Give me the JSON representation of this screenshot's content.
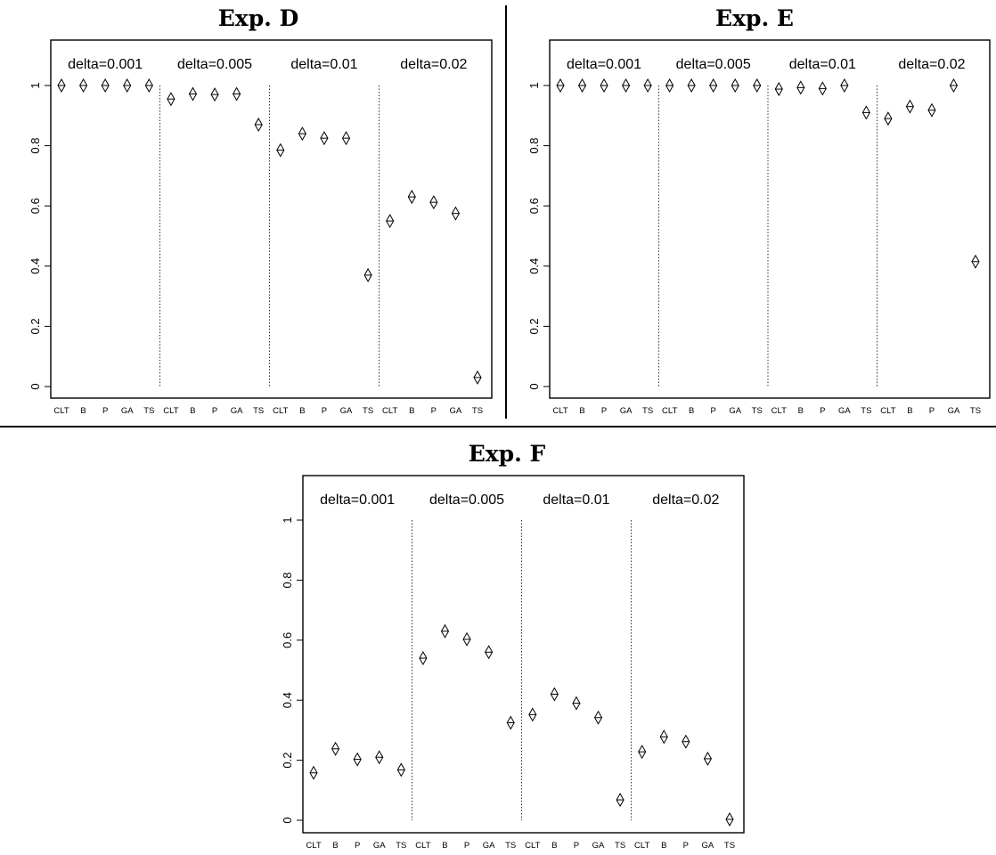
{
  "figure": {
    "x_categories": [
      "CLT",
      "B",
      "P",
      "GA",
      "TS"
    ],
    "group_labels": [
      "delta=0.001",
      "delta=0.005",
      "delta=0.01",
      "delta=0.02"
    ],
    "y_ticks": [
      "0",
      "0.2",
      "0.4",
      "0.6",
      "0.8",
      "1"
    ]
  },
  "chart_data": [
    {
      "type": "scatter",
      "title": "Exp. D",
      "xlabel": "",
      "ylabel": "",
      "ylim": [
        0,
        1
      ],
      "grid": false,
      "groups": [
        {
          "label": "delta=0.001",
          "categories": [
            "CLT",
            "B",
            "P",
            "GA",
            "TS"
          ],
          "values": [
            1.0,
            1.0,
            1.0,
            1.0,
            1.0
          ]
        },
        {
          "label": "delta=0.005",
          "categories": [
            "CLT",
            "B",
            "P",
            "GA",
            "TS"
          ],
          "values": [
            0.955,
            0.972,
            0.97,
            0.972,
            0.87
          ]
        },
        {
          "label": "delta=0.01",
          "categories": [
            "CLT",
            "B",
            "P",
            "GA",
            "TS"
          ],
          "values": [
            0.785,
            0.84,
            0.825,
            0.825,
            0.37
          ]
        },
        {
          "label": "delta=0.02",
          "categories": [
            "CLT",
            "B",
            "P",
            "GA",
            "TS"
          ],
          "values": [
            0.55,
            0.63,
            0.612,
            0.575,
            0.03
          ]
        }
      ]
    },
    {
      "type": "scatter",
      "title": "Exp. E",
      "xlabel": "",
      "ylabel": "",
      "ylim": [
        0,
        1
      ],
      "grid": false,
      "groups": [
        {
          "label": "delta=0.001",
          "categories": [
            "CLT",
            "B",
            "P",
            "GA",
            "TS"
          ],
          "values": [
            1.0,
            1.0,
            1.0,
            1.0,
            1.0
          ]
        },
        {
          "label": "delta=0.005",
          "categories": [
            "CLT",
            "B",
            "P",
            "GA",
            "TS"
          ],
          "values": [
            1.0,
            1.0,
            1.0,
            1.0,
            1.0
          ]
        },
        {
          "label": "delta=0.01",
          "categories": [
            "CLT",
            "B",
            "P",
            "GA",
            "TS"
          ],
          "values": [
            0.988,
            0.993,
            0.99,
            1.0,
            0.91
          ]
        },
        {
          "label": "delta=0.02",
          "categories": [
            "CLT",
            "B",
            "P",
            "GA",
            "TS"
          ],
          "values": [
            0.89,
            0.93,
            0.918,
            1.0,
            0.415
          ]
        }
      ]
    },
    {
      "type": "scatter",
      "title": "Exp. F",
      "xlabel": "",
      "ylabel": "",
      "ylim": [
        0,
        1
      ],
      "grid": false,
      "groups": [
        {
          "label": "delta=0.001",
          "categories": [
            "CLT",
            "B",
            "P",
            "GA",
            "TS"
          ],
          "values": [
            0.158,
            0.238,
            0.203,
            0.21,
            0.168
          ]
        },
        {
          "label": "delta=0.005",
          "categories": [
            "CLT",
            "B",
            "P",
            "GA",
            "TS"
          ],
          "values": [
            0.54,
            0.63,
            0.603,
            0.56,
            0.325
          ]
        },
        {
          "label": "delta=0.01",
          "categories": [
            "CLT",
            "B",
            "P",
            "GA",
            "TS"
          ],
          "values": [
            0.352,
            0.42,
            0.39,
            0.342,
            0.068
          ]
        },
        {
          "label": "delta=0.02",
          "categories": [
            "CLT",
            "B",
            "P",
            "GA",
            "TS"
          ],
          "values": [
            0.228,
            0.278,
            0.262,
            0.205,
            0.003
          ]
        }
      ]
    }
  ]
}
